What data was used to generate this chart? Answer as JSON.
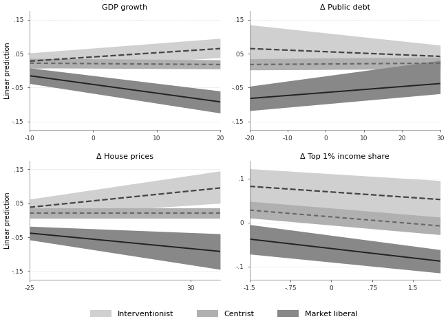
{
  "panels": [
    {
      "title": "GDP growth",
      "xlabel": "GDP growth",
      "ylabel": "Linear prediction",
      "xlim": [
        -10,
        20
      ],
      "ylim": [
        -0.175,
        0.175
      ],
      "yticks": [
        -0.15,
        -0.05,
        0.05,
        0.15
      ],
      "ytick_labels": [
        "-.15",
        "-.05",
        ".05",
        ".15"
      ],
      "xticks": [
        -10,
        0,
        10,
        20
      ],
      "xtick_labels": [
        "-10",
        "0",
        "10",
        "20"
      ],
      "lines": [
        {
          "name": "interventionist",
          "x": [
            -10,
            20
          ],
          "y": [
            0.028,
            0.065
          ],
          "ci_lo": [
            0.005,
            0.038
          ],
          "ci_hi": [
            0.052,
            0.095
          ],
          "style": "dashed",
          "color": "#444444",
          "band_color": "#d0d0d0"
        },
        {
          "name": "centrist",
          "x": [
            -10,
            20
          ],
          "y": [
            0.022,
            0.018
          ],
          "ci_lo": [
            0.008,
            0.005
          ],
          "ci_hi": [
            0.036,
            0.032
          ],
          "style": "dotted",
          "color": "#666666",
          "band_color": "#b0b0b0"
        },
        {
          "name": "market_liberal",
          "x": [
            -10,
            20
          ],
          "y": [
            -0.015,
            -0.092
          ],
          "ci_lo": [
            -0.038,
            -0.125
          ],
          "ci_hi": [
            0.008,
            -0.06
          ],
          "style": "solid",
          "color": "#222222",
          "band_color": "#888888"
        }
      ]
    },
    {
      "title": "Δ Public debt",
      "xlabel": "Δ Public debt",
      "ylabel": "Linear prediction",
      "xlim": [
        -20,
        30
      ],
      "ylim": [
        -0.175,
        0.175
      ],
      "yticks": [
        -0.15,
        -0.05,
        0.05,
        0.15
      ],
      "ytick_labels": [
        "-.15",
        "-.05",
        ".05",
        ".15"
      ],
      "xticks": [
        -20,
        -10,
        0,
        10,
        20,
        30
      ],
      "xtick_labels": [
        "-20",
        "-10",
        "0",
        "10",
        "20",
        "30"
      ],
      "lines": [
        {
          "name": "interventionist",
          "x": [
            -20,
            30
          ],
          "y": [
            0.065,
            0.042
          ],
          "ci_lo": [
            0.025,
            0.018
          ],
          "ci_hi": [
            0.135,
            0.075
          ],
          "style": "dashed",
          "color": "#444444",
          "band_color": "#d0d0d0"
        },
        {
          "name": "centrist",
          "x": [
            -20,
            30
          ],
          "y": [
            0.018,
            0.022
          ],
          "ci_lo": [
            0.002,
            0.005
          ],
          "ci_hi": [
            0.035,
            0.04
          ],
          "style": "dotted",
          "color": "#666666",
          "band_color": "#b0b0b0"
        },
        {
          "name": "market_liberal",
          "x": [
            -20,
            30
          ],
          "y": [
            -0.082,
            -0.038
          ],
          "ci_lo": [
            -0.118,
            -0.068
          ],
          "ci_hi": [
            -0.046,
            0.03
          ],
          "style": "solid",
          "color": "#222222",
          "band_color": "#888888"
        }
      ]
    },
    {
      "title": "Δ House prices",
      "xlabel": "Δ House prices",
      "ylabel": "Linear prediction",
      "xlim": [
        -25,
        40
      ],
      "ylim": [
        -0.175,
        0.175
      ],
      "yticks": [
        -0.15,
        -0.05,
        0.05,
        0.15
      ],
      "ytick_labels": [
        "-.15",
        "-.05",
        ".05",
        ".15"
      ],
      "xticks": [
        -25,
        30
      ],
      "xtick_labels": [
        "-25",
        "30"
      ],
      "lines": [
        {
          "name": "interventionist",
          "x": [
            -25,
            40
          ],
          "y": [
            0.038,
            0.095
          ],
          "ci_lo": [
            0.012,
            0.05
          ],
          "ci_hi": [
            0.062,
            0.145
          ],
          "style": "dashed",
          "color": "#444444",
          "band_color": "#d0d0d0"
        },
        {
          "name": "centrist",
          "x": [
            -25,
            40
          ],
          "y": [
            0.02,
            0.02
          ],
          "ci_lo": [
            0.005,
            0.005
          ],
          "ci_hi": [
            0.035,
            0.035
          ],
          "style": "dotted",
          "color": "#666666",
          "band_color": "#b0b0b0"
        },
        {
          "name": "market_liberal",
          "x": [
            -25,
            40
          ],
          "y": [
            -0.038,
            -0.092
          ],
          "ci_lo": [
            -0.058,
            -0.145
          ],
          "ci_hi": [
            -0.018,
            -0.04
          ],
          "style": "solid",
          "color": "#222222",
          "band_color": "#888888"
        }
      ]
    },
    {
      "title": "Δ Top 1% income share",
      "xlabel": "Δ Top 1% income share",
      "ylabel": "Linear prediction",
      "xlim": [
        -1.5,
        2.0
      ],
      "ylim": [
        -0.13,
        0.14
      ],
      "yticks": [
        -0.1,
        0.0,
        0.1
      ],
      "ytick_labels": [
        "-.1",
        "0",
        ".1"
      ],
      "xticks": [
        -1.5,
        -0.75,
        0,
        0.75,
        1.5
      ],
      "xtick_labels": [
        "-1.5",
        "-.75",
        "0",
        ".75",
        "1.5"
      ],
      "lines": [
        {
          "name": "interventionist",
          "x": [
            -1.5,
            2.0
          ],
          "y": [
            0.082,
            0.052
          ],
          "ci_lo": [
            0.042,
            0.01
          ],
          "ci_hi": [
            0.122,
            0.095
          ],
          "style": "dashed",
          "color": "#444444",
          "band_color": "#d0d0d0"
        },
        {
          "name": "centrist",
          "x": [
            -1.5,
            2.0
          ],
          "y": [
            0.028,
            -0.008
          ],
          "ci_lo": [
            0.01,
            -0.028
          ],
          "ci_hi": [
            0.048,
            0.012
          ],
          "style": "dotted",
          "color": "#666666",
          "band_color": "#b0b0b0"
        },
        {
          "name": "market_liberal",
          "x": [
            -1.5,
            2.0
          ],
          "y": [
            -0.038,
            -0.088
          ],
          "ci_lo": [
            -0.072,
            -0.115
          ],
          "ci_hi": [
            -0.005,
            -0.062
          ],
          "style": "solid",
          "color": "#222222",
          "band_color": "#888888"
        }
      ]
    }
  ],
  "legend": [
    {
      "label": "Interventionist",
      "band_color": "#d0d0d0"
    },
    {
      "label": "Centrist",
      "band_color": "#b0b0b0"
    },
    {
      "label": "Market liberal",
      "band_color": "#888888"
    }
  ],
  "figure_bg": "#ffffff",
  "axes_bg": "#ffffff",
  "label_fontsize": 7,
  "title_fontsize": 8,
  "tick_fontsize": 6.5,
  "legend_fontsize": 8
}
